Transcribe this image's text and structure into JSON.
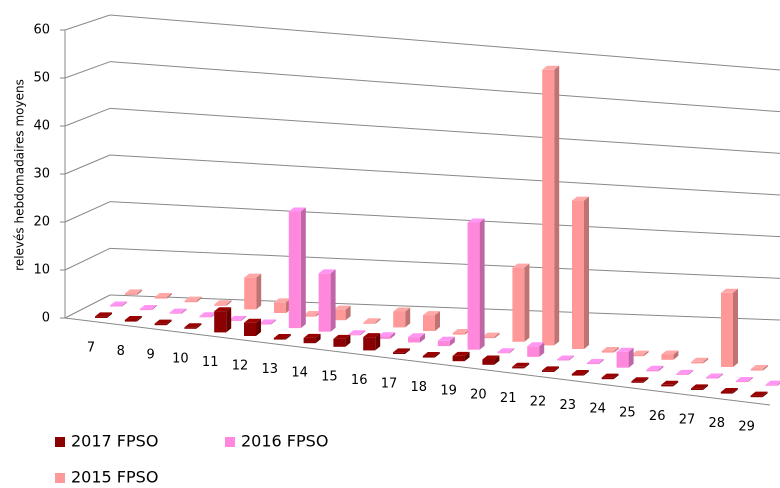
{
  "chart_data": {
    "type": "bar3d",
    "y_label": "relevés hebdomadaires moyens",
    "categories": [
      "7",
      "8",
      "9",
      "10",
      "11",
      "12",
      "13",
      "14",
      "15",
      "16",
      "17",
      "18",
      "19",
      "20",
      "21",
      "22",
      "23",
      "24",
      "25",
      "26",
      "27",
      "28",
      "29"
    ],
    "series": [
      {
        "name": "2017 FPSO",
        "color": "#8b0000",
        "values": [
          0.3,
          0.3,
          0.3,
          0.3,
          4,
          2.5,
          0.3,
          1,
          1.5,
          2.5,
          0.3,
          0.3,
          1,
          1,
          0.3,
          0.3,
          0.3,
          0.3,
          0.3,
          0.3,
          0.3,
          0.3,
          0.3
        ]
      },
      {
        "name": "2016 FPSO",
        "color": "#ff88dd",
        "values": [
          0.2,
          0.2,
          0.2,
          0.2,
          0.2,
          0.2,
          22,
          11,
          0.2,
          0.5,
          1,
          1,
          24,
          0.2,
          2,
          0.2,
          0.2,
          3,
          0.3,
          0.2,
          0.2,
          0.2,
          0.2
        ]
      },
      {
        "name": "2015 FPSO",
        "color": "#ff9999",
        "values": [
          0.3,
          0.3,
          0.3,
          0.3,
          6,
          2,
          0.3,
          2,
          0.3,
          3,
          3,
          0.3,
          0.3,
          14,
          52,
          28,
          0.3,
          0.3,
          1,
          0.3,
          14,
          0.3,
          0.3
        ]
      }
    ],
    "ylim": [
      0,
      60
    ],
    "yticks": [
      0,
      10,
      20,
      30,
      40,
      50,
      60
    ],
    "grid": true
  }
}
